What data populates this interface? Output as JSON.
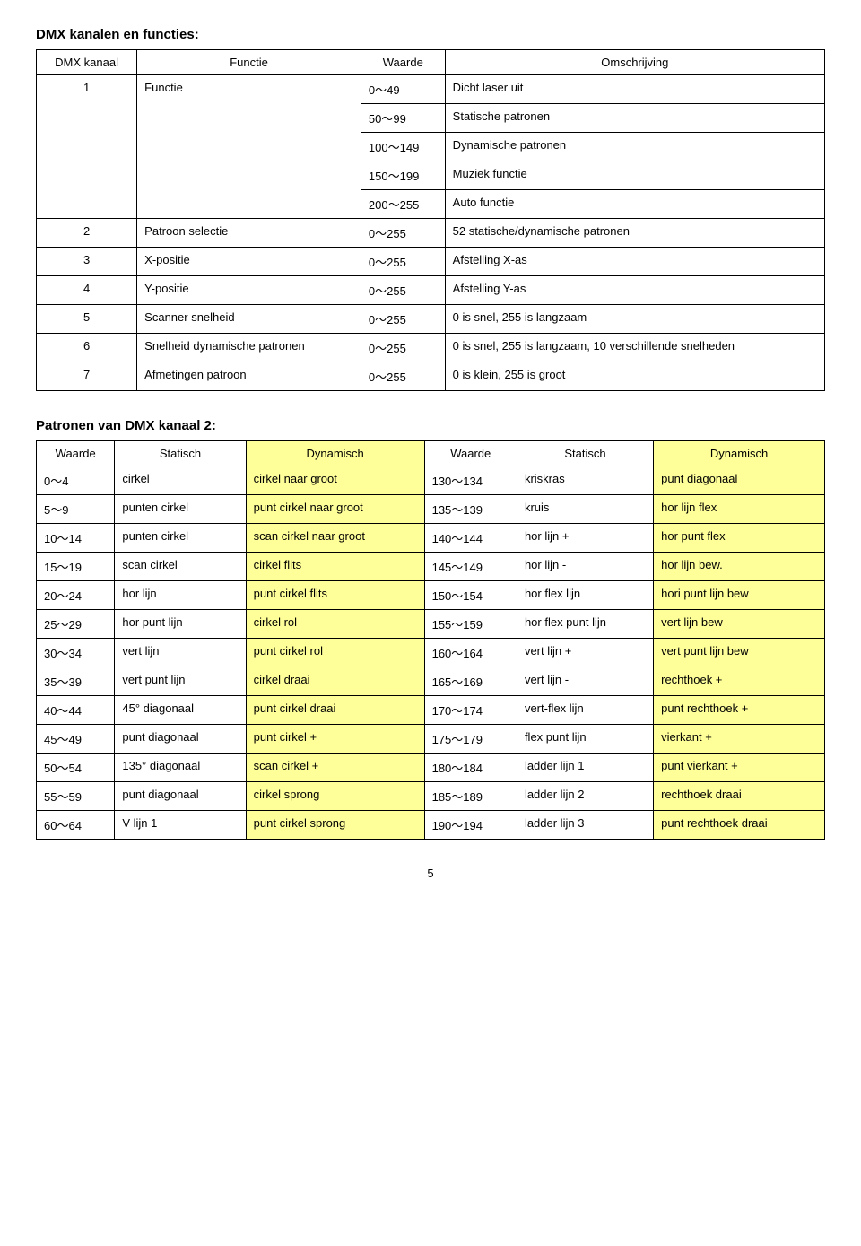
{
  "page_number": "5",
  "section1": {
    "title": "DMX kanalen en functies:",
    "headers": [
      "DMX kanaal",
      "Functie",
      "Waarde",
      "Omschrijving"
    ],
    "ch1": {
      "num": "1",
      "func": "Functie",
      "r": [
        [
          "0～49",
          "Dicht laser uit"
        ],
        [
          "50～99",
          "Statische patronen"
        ],
        [
          "100～149",
          "Dynamische patronen"
        ],
        [
          "150～199",
          "Muziek functie"
        ],
        [
          "200～255",
          "Auto functie"
        ]
      ]
    },
    "rows": [
      [
        "2",
        "Patroon selectie",
        "0～255",
        "52 statische/dynamische patronen"
      ],
      [
        "3",
        "X-positie",
        "0～255",
        "Afstelling X-as"
      ],
      [
        "4",
        "Y-positie",
        "0～255",
        "Afstelling Y-as"
      ],
      [
        "5",
        "Scanner snelheid",
        "0～255",
        "0 is snel, 255 is langzaam"
      ],
      [
        "6",
        "Snelheid dynamische patronen",
        "0～255",
        "0 is snel, 255 is langzaam, 10 verschillende snelheden"
      ]
    ],
    "row7": [
      "7",
      "Afmetingen patroon",
      "0～255",
      "0 is klein, 255 is groot"
    ]
  },
  "section2": {
    "title": "Patronen van DMX kanaal 2:",
    "headers": [
      "Waarde",
      "Statisch",
      "Dynamisch",
      "Waarde",
      "Statisch",
      "Dynamisch"
    ],
    "highlight_bg": "#ffff99",
    "rows": [
      [
        "0～4",
        "cirkel",
        "cirkel naar groot",
        "130～134",
        "kriskras",
        "punt diagonaal"
      ],
      [
        "5～9",
        "punten cirkel",
        "punt cirkel naar groot",
        "135～139",
        "kruis",
        "hor lijn flex"
      ],
      [
        "10～14",
        "punten cirkel",
        "scan cirkel naar groot",
        "140～144",
        "hor lijn +",
        "hor punt flex"
      ],
      [
        "15～19",
        "scan cirkel",
        "cirkel flits",
        "145～149",
        "hor lijn -",
        "hor lijn bew."
      ],
      [
        "20～24",
        "hor lijn",
        "punt cirkel flits",
        "150～154",
        "hor flex lijn",
        "hori punt lijn bew"
      ],
      [
        "25～29",
        "hor punt lijn",
        "cirkel rol",
        "155～159",
        "hor flex punt lijn",
        "vert lijn bew"
      ],
      [
        "30～34",
        "vert lijn",
        "punt cirkel rol",
        "160～164",
        "vert lijn +",
        "vert punt lijn bew"
      ],
      [
        "35～39",
        "vert punt lijn",
        "cirkel draai",
        "165～169",
        "vert lijn -",
        "rechthoek +"
      ],
      [
        "40～44",
        "45° diagonaal",
        "punt cirkel draai",
        "170～174",
        "vert-flex lijn",
        "punt rechthoek +"
      ],
      [
        "45～49",
        "punt diagonaal",
        "punt cirkel +",
        "175～179",
        "flex punt lijn",
        "vierkant +"
      ],
      [
        "50～54",
        "135° diagonaal",
        "scan cirkel +",
        "180～184",
        "ladder lijn 1",
        "punt vierkant +"
      ],
      [
        "55～59",
        "punt diagonaal",
        "cirkel sprong",
        "185～189",
        "ladder lijn 2",
        "rechthoek draai"
      ],
      [
        "60～64",
        "V lijn 1",
        "punt cirkel sprong",
        "190～194",
        "ladder lijn 3",
        "punt rechthoek draai"
      ]
    ]
  }
}
